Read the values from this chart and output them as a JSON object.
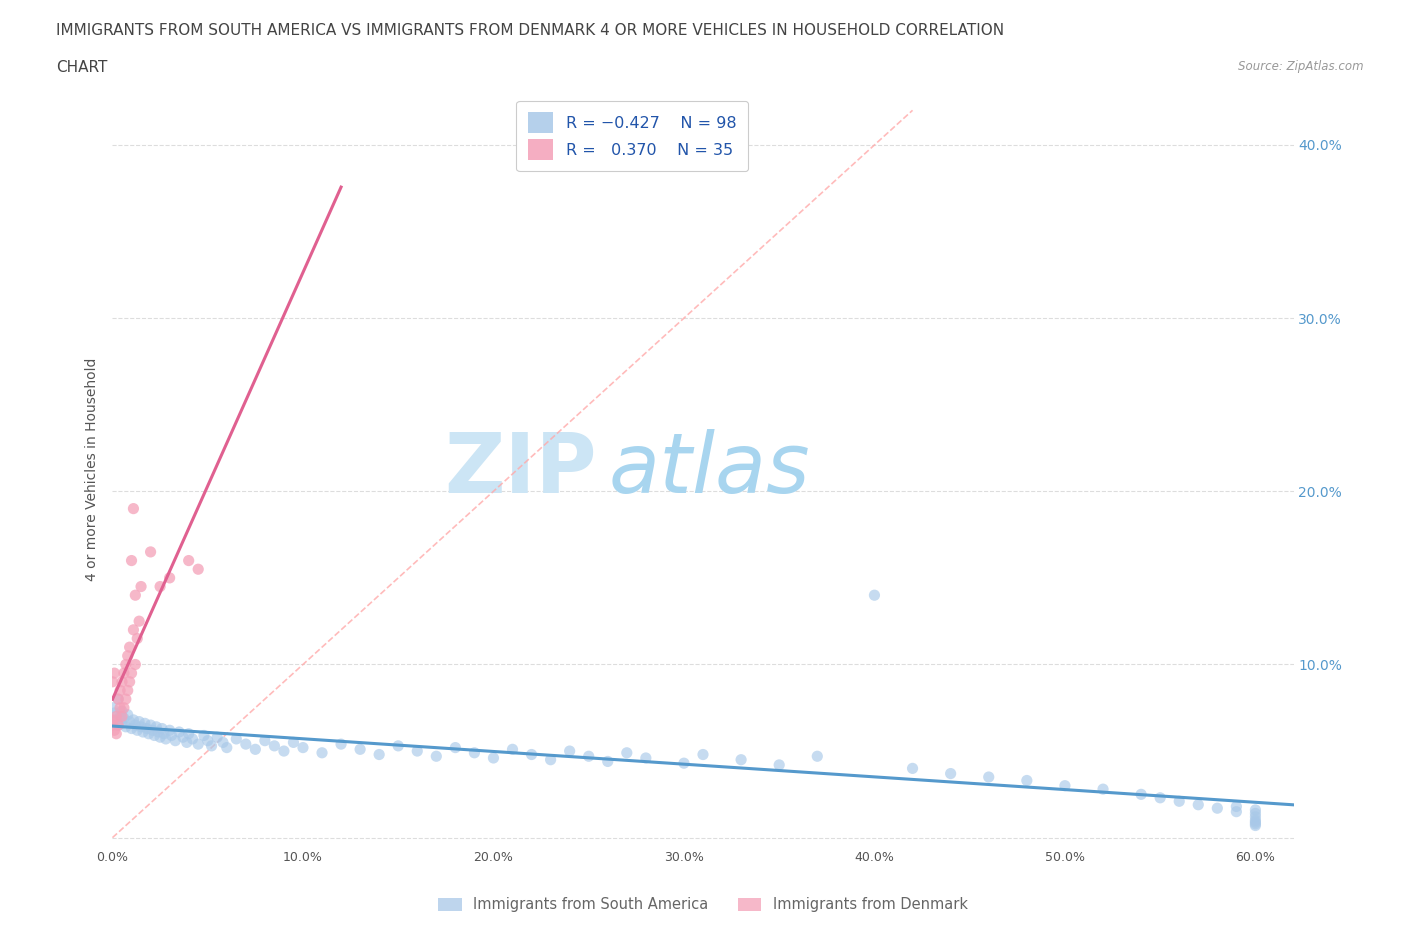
{
  "title_line1": "IMMIGRANTS FROM SOUTH AMERICA VS IMMIGRANTS FROM DENMARK 4 OR MORE VEHICLES IN HOUSEHOLD CORRELATION",
  "title_line2": "CHART",
  "source": "Source: ZipAtlas.com",
  "ylabel": "4 or more Vehicles in Household",
  "xlim": [
    0.0,
    0.62
  ],
  "ylim": [
    -0.005,
    0.43
  ],
  "x_ticks": [
    0.0,
    0.1,
    0.2,
    0.3,
    0.4,
    0.5,
    0.6
  ],
  "x_tick_labels": [
    "0.0%",
    "10.0%",
    "20.0%",
    "30.0%",
    "40.0%",
    "50.0%",
    "60.0%"
  ],
  "y_ticks": [
    0.0,
    0.1,
    0.2,
    0.3,
    0.4
  ],
  "y_tick_labels_right": [
    "",
    "10.0%",
    "20.0%",
    "30.0%",
    "40.0%"
  ],
  "color_blue": "#a8c8e8",
  "color_pink": "#f4a0b8",
  "color_blue_line": "#5599cc",
  "color_pink_line": "#e06090",
  "color_diag": "#ffaaaa",
  "background_color": "#ffffff",
  "grid_color": "#dddddd",
  "watermark_color": "#cce5f5",
  "watermark_color2": "#a8d5ef",
  "title_fontsize": 11,
  "axis_label_fontsize": 10,
  "tick_fontsize": 9,
  "watermark_fontsize": 60,
  "south_america_x": [
    0.0,
    0.001,
    0.002,
    0.003,
    0.003,
    0.004,
    0.005,
    0.005,
    0.006,
    0.007,
    0.008,
    0.009,
    0.01,
    0.011,
    0.012,
    0.013,
    0.014,
    0.015,
    0.016,
    0.017,
    0.018,
    0.019,
    0.02,
    0.021,
    0.022,
    0.023,
    0.024,
    0.025,
    0.026,
    0.027,
    0.028,
    0.03,
    0.031,
    0.033,
    0.035,
    0.037,
    0.039,
    0.04,
    0.042,
    0.045,
    0.048,
    0.05,
    0.052,
    0.055,
    0.058,
    0.06,
    0.065,
    0.07,
    0.075,
    0.08,
    0.085,
    0.09,
    0.095,
    0.1,
    0.11,
    0.12,
    0.13,
    0.14,
    0.15,
    0.16,
    0.17,
    0.18,
    0.19,
    0.2,
    0.21,
    0.22,
    0.23,
    0.24,
    0.25,
    0.26,
    0.27,
    0.28,
    0.3,
    0.31,
    0.33,
    0.35,
    0.37,
    0.4,
    0.42,
    0.44,
    0.46,
    0.48,
    0.5,
    0.52,
    0.54,
    0.55,
    0.56,
    0.57,
    0.58,
    0.59,
    0.59,
    0.6,
    0.6,
    0.6,
    0.6,
    0.6,
    0.6,
    0.6
  ],
  "south_america_y": [
    0.075,
    0.072,
    0.068,
    0.065,
    0.08,
    0.07,
    0.066,
    0.073,
    0.069,
    0.064,
    0.071,
    0.067,
    0.063,
    0.068,
    0.065,
    0.062,
    0.067,
    0.064,
    0.061,
    0.066,
    0.063,
    0.06,
    0.065,
    0.062,
    0.059,
    0.064,
    0.061,
    0.058,
    0.063,
    0.06,
    0.057,
    0.062,
    0.059,
    0.056,
    0.061,
    0.058,
    0.055,
    0.06,
    0.057,
    0.054,
    0.059,
    0.056,
    0.053,
    0.058,
    0.055,
    0.052,
    0.057,
    0.054,
    0.051,
    0.056,
    0.053,
    0.05,
    0.055,
    0.052,
    0.049,
    0.054,
    0.051,
    0.048,
    0.053,
    0.05,
    0.047,
    0.052,
    0.049,
    0.046,
    0.051,
    0.048,
    0.045,
    0.05,
    0.047,
    0.044,
    0.049,
    0.046,
    0.043,
    0.048,
    0.045,
    0.042,
    0.047,
    0.14,
    0.04,
    0.037,
    0.035,
    0.033,
    0.03,
    0.028,
    0.025,
    0.023,
    0.021,
    0.019,
    0.017,
    0.015,
    0.018,
    0.016,
    0.014,
    0.012,
    0.01,
    0.009,
    0.008,
    0.007
  ],
  "denmark_x": [
    0.0,
    0.0,
    0.0,
    0.001,
    0.001,
    0.002,
    0.002,
    0.003,
    0.003,
    0.004,
    0.004,
    0.005,
    0.005,
    0.006,
    0.006,
    0.007,
    0.007,
    0.008,
    0.008,
    0.009,
    0.009,
    0.01,
    0.01,
    0.011,
    0.011,
    0.012,
    0.012,
    0.013,
    0.014,
    0.015,
    0.02,
    0.025,
    0.03,
    0.04,
    0.045
  ],
  "denmark_y": [
    0.065,
    0.068,
    0.09,
    0.062,
    0.095,
    0.06,
    0.07,
    0.065,
    0.08,
    0.075,
    0.085,
    0.07,
    0.09,
    0.075,
    0.095,
    0.08,
    0.1,
    0.085,
    0.105,
    0.09,
    0.11,
    0.095,
    0.16,
    0.19,
    0.12,
    0.14,
    0.1,
    0.115,
    0.125,
    0.145,
    0.165,
    0.145,
    0.15,
    0.16,
    0.155
  ]
}
